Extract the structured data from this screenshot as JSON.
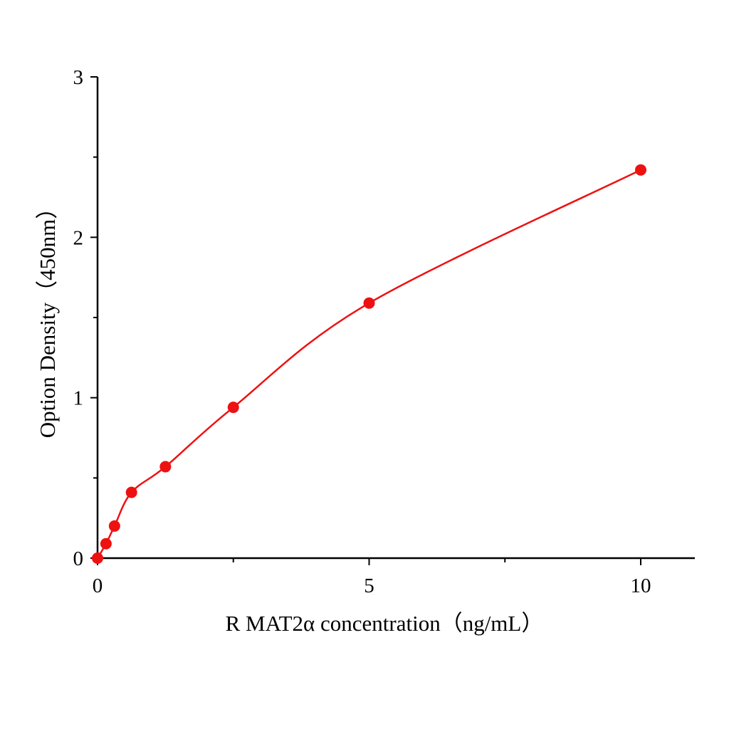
{
  "chart_data": {
    "type": "scatter",
    "title": "",
    "xlabel": "R MAT2α  concentration（ng/mL）",
    "ylabel": "Option Density（450nm）",
    "xlim": [
      0,
      11
    ],
    "ylim": [
      0,
      3
    ],
    "x_ticks": [
      "0",
      "5",
      "10"
    ],
    "y_ticks": [
      "0",
      "1",
      "2",
      "3"
    ],
    "x_minor_step": 2.5,
    "y_minor_step": 0.5,
    "grid": false,
    "legend": "none",
    "color": "#ee1111",
    "series": [
      {
        "x": [
          0,
          0.156,
          0.3125,
          0.625,
          1.25,
          2.5,
          5,
          10
        ],
        "y": [
          0,
          0.09,
          0.2,
          0.41,
          0.57,
          0.94,
          1.59,
          2.42
        ]
      }
    ],
    "fit_line": true
  }
}
